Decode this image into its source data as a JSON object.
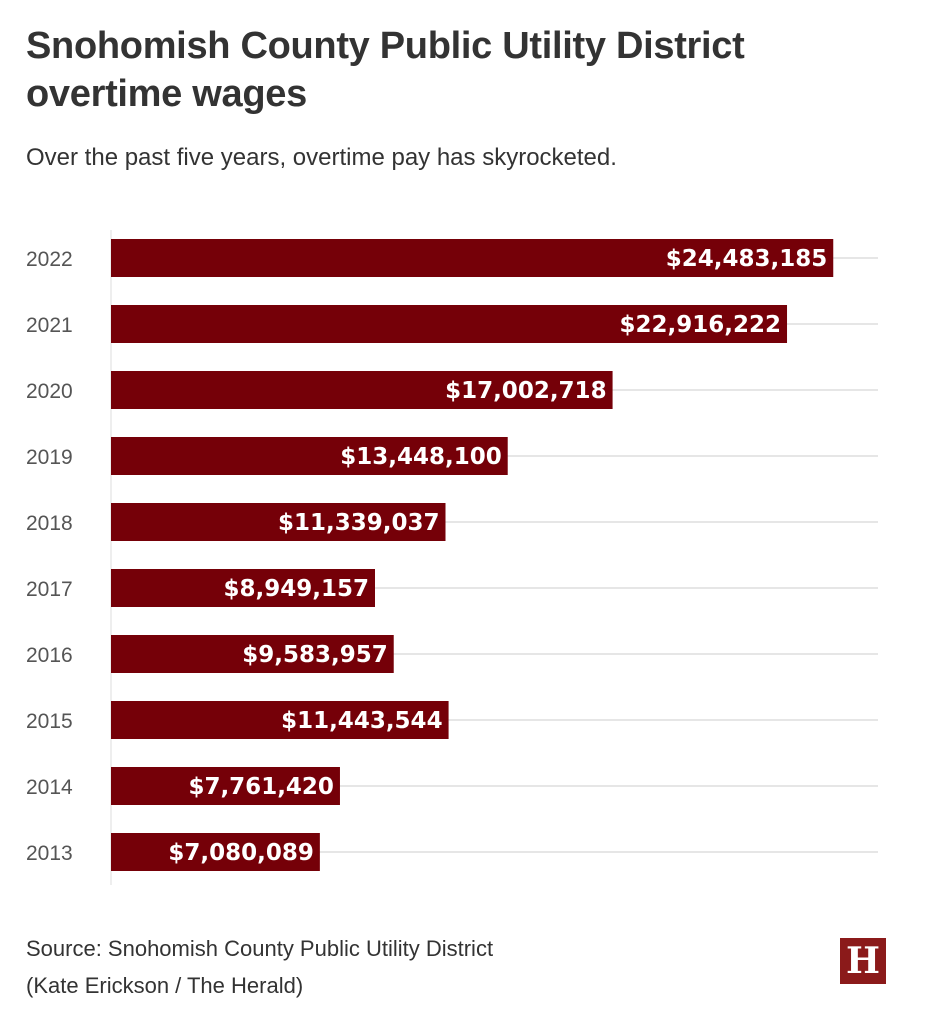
{
  "header": {
    "title": "Snohomish County Public Utility District overtime wages",
    "subtitle": "Over the past five years, overtime pay has skyrocketed."
  },
  "footer": {
    "source_line1": "Source: Snohomish County Public Utility District",
    "source_line2": "(Kate Erickson / The Herald)",
    "logo_letter": "H"
  },
  "colors": {
    "bar": "#750008",
    "gridline": "#e6e6e6",
    "logo": "#8b1a1a"
  },
  "chart_data": {
    "type": "bar",
    "orientation": "horizontal",
    "title": "Snohomish County Public Utility District overtime wages",
    "subtitle": "Over the past five years, overtime pay has skyrocketed.",
    "xlabel": "",
    "ylabel": "",
    "xlim": [
      0,
      26000000
    ],
    "grid": true,
    "categories": [
      "2022",
      "2021",
      "2020",
      "2019",
      "2018",
      "2017",
      "2016",
      "2015",
      "2014",
      "2013"
    ],
    "values": [
      24483185,
      22916222,
      17002718,
      13448100,
      11339037,
      8949157,
      9583957,
      11443544,
      7761420,
      7080089
    ],
    "value_labels": [
      "$24,483,185",
      "$22,916,222",
      "$17,002,718",
      "$13,448,100",
      "$11,339,037",
      "$8,949,157",
      "$9,583,957",
      "$11,443,544",
      "$7,761,420",
      "$7,080,089"
    ]
  }
}
